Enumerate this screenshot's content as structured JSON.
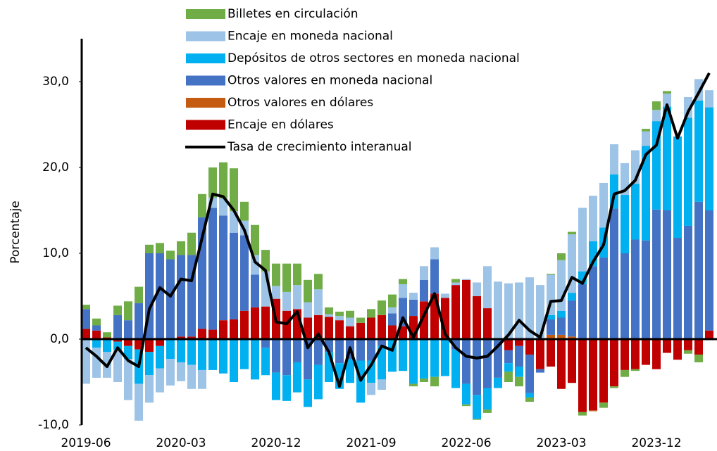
{
  "chart_data": {
    "type": "bar",
    "stacked": true,
    "y_label": "Porcentaje",
    "categories": [
      "2019-06",
      null,
      null,
      null,
      null,
      null,
      null,
      null,
      null,
      "2020-03",
      null,
      null,
      null,
      null,
      null,
      null,
      null,
      null,
      "2020-12",
      null,
      null,
      null,
      null,
      null,
      null,
      null,
      null,
      "2021-09",
      null,
      null,
      null,
      null,
      null,
      null,
      null,
      null,
      "2022-06",
      null,
      null,
      null,
      null,
      null,
      null,
      null,
      null,
      "2023-03",
      null,
      null,
      null,
      null,
      null,
      null,
      null,
      null,
      "2023-12",
      null,
      null,
      null,
      null,
      null
    ],
    "ylim": [
      -10,
      35
    ],
    "yticks": [
      {
        "value": -10,
        "label": "-10,0"
      },
      {
        "value": 0,
        "label": "0,0"
      },
      {
        "value": 10,
        "label": "10,0"
      },
      {
        "value": 20,
        "label": "20,0"
      },
      {
        "value": 30,
        "label": "30,0"
      }
    ],
    "series": [
      {
        "name": "Billetes en circulación",
        "color": "#70ad47",
        "values": [
          0.5,
          0.8,
          0.6,
          1.1,
          2.2,
          1.9,
          1,
          1.2,
          1,
          1.6,
          2.6,
          2.7,
          3.5,
          4.2,
          5,
          2.2,
          3.5,
          2.5,
          2.6,
          3.3,
          2.5,
          2.6,
          1.8,
          0.8,
          0.5,
          0.8,
          0.6,
          1,
          1.7,
          1.5,
          0.6,
          -0.3,
          -0.4,
          -1.1,
          0,
          0.4,
          -0.2,
          -0.1,
          -0.4,
          0,
          -1.2,
          -1.1,
          -0.5,
          0,
          0.1,
          0.8,
          0.3,
          -0.4,
          0,
          -0.6,
          -0.2,
          -0.8,
          -0.2,
          0.3,
          1,
          0.3,
          0,
          -0.4,
          -0.9,
          0
        ]
      },
      {
        "name": "Encaje en moneda nacional",
        "color": "#9dc3e6",
        "values": [
          -5.2,
          -3.5,
          -3,
          -3.7,
          -4.8,
          -4.3,
          -3.2,
          -2.8,
          -3.1,
          -2.2,
          -2.8,
          -2.2,
          1.2,
          2,
          2.5,
          1.7,
          2.3,
          4.1,
          1.5,
          2.2,
          2.8,
          1.8,
          3,
          0.3,
          0.5,
          1,
          0,
          -1.4,
          -1.2,
          0.7,
          1.6,
          0.8,
          1.6,
          1.4,
          0.5,
          0.3,
          0.1,
          1.6,
          4.9,
          6.7,
          6.5,
          6.6,
          7.2,
          6.3,
          4.7,
          5.9,
          6.8,
          7.4,
          5.3,
          5.2,
          3.5,
          3.7,
          3.9,
          1.7,
          1.3,
          1.5,
          0,
          2.4,
          2.5,
          2
        ]
      },
      {
        "name": "Depósitos de otros sectores en moneda nacional",
        "color": "#00b0f0",
        "values": [
          0,
          -1,
          -1.5,
          -1,
          -1.5,
          -4,
          -2.7,
          -2.6,
          -2.3,
          -2.7,
          -3,
          -3.6,
          -3.6,
          -4,
          -5,
          -3.5,
          -4.7,
          -3.2,
          -3.2,
          -3,
          -3.5,
          -3.2,
          -4,
          -3.5,
          -3,
          -2.8,
          -4.9,
          -2.6,
          -3.9,
          -3.8,
          -3.7,
          -5.2,
          -4.6,
          -4.4,
          -4.3,
          -4.5,
          -2.4,
          -2.8,
          -2.5,
          -1.2,
          -1,
          -1.2,
          -0.5,
          0,
          0.5,
          0.8,
          0.9,
          1.5,
          2.9,
          3.5,
          4,
          6.8,
          6.5,
          11,
          10.3,
          12.1,
          11.8,
          12.6,
          11.8,
          12
        ]
      },
      {
        "name": "Otros valores en moneda nacional",
        "color": "#4472c4",
        "values": [
          2.3,
          0.6,
          0,
          2.8,
          2.2,
          4.2,
          10,
          10,
          9.3,
          9.5,
          9.5,
          13,
          14.2,
          12.2,
          10.1,
          8.8,
          3.8,
          -1,
          -3.9,
          -4.2,
          -2.7,
          -4.7,
          -3,
          -1.5,
          -2.8,
          -2.3,
          -2.5,
          -2.5,
          -0.8,
          1.4,
          3.3,
          1.9,
          2.5,
          4,
          0,
          -1.2,
          -5.2,
          -6.5,
          -5.7,
          -4.5,
          -1.5,
          -2.4,
          -4.5,
          -0.4,
          1.8,
          2,
          4.2,
          6.4,
          8.5,
          9.5,
          15.2,
          10,
          11.6,
          11.5,
          15.1,
          15,
          11.8,
          13.2,
          16,
          14
        ]
      },
      {
        "name": "Otros valores en dólares",
        "color": "#c55a11",
        "values": [
          0,
          0,
          0,
          0,
          0,
          0,
          0,
          0,
          0,
          0,
          0,
          0,
          0,
          0,
          0,
          0,
          0,
          0,
          0,
          0,
          0,
          0,
          0,
          0,
          0,
          0,
          0,
          0,
          0,
          0,
          0,
          0,
          0,
          0,
          0,
          0,
          0,
          0,
          0,
          0,
          0,
          0,
          0,
          0,
          0.5,
          0.5,
          0.3,
          0,
          -0.1,
          0,
          0,
          0,
          0,
          0,
          0,
          0,
          0,
          0,
          0,
          0
        ]
      },
      {
        "name": "Encaje en dólares",
        "color": "#c00000",
        "values": [
          1.2,
          1,
          0.2,
          -0.3,
          -0.8,
          -1.2,
          -1.5,
          -0.8,
          0,
          0.3,
          0.3,
          1.2,
          1.1,
          2.2,
          2.3,
          3.3,
          3.7,
          3.8,
          4.7,
          3.3,
          3.5,
          2.5,
          2.8,
          2.6,
          2.2,
          1.5,
          1.9,
          2.5,
          2.8,
          1.6,
          1.5,
          2.7,
          4.4,
          5.3,
          4.8,
          6.3,
          6.9,
          5,
          3.6,
          0,
          -1.3,
          -0.8,
          -1.8,
          -3.5,
          -3.2,
          -5.8,
          -5.1,
          -8.5,
          -8.3,
          -7.4,
          -5.5,
          -3.6,
          -3.5,
          -3,
          -3.5,
          -1.6,
          -2.4,
          -1.3,
          -1.8,
          1
        ]
      },
      {
        "name": "Tasa de crecimiento interanual",
        "type": "line",
        "color": "#000000",
        "values": [
          -1,
          -2,
          -3.2,
          -1,
          -2.5,
          -3.2,
          3.5,
          6,
          5,
          7,
          6.8,
          11.8,
          16.9,
          16.6,
          15,
          12.7,
          9,
          8,
          2,
          1.8,
          3.2,
          -1,
          0.6,
          -1.5,
          -5.5,
          -1,
          -4.8,
          -3,
          -0.8,
          -1.3,
          2.5,
          0.2,
          2.8,
          5.3,
          0.6,
          -1,
          -2,
          -2.2,
          -2,
          -0.8,
          0.5,
          2.2,
          1,
          0.2,
          4.4,
          4.5,
          7.2,
          6.5,
          9,
          11,
          16.9,
          17.3,
          18.5,
          21.5,
          22.6,
          27.3,
          23.4,
          26.5,
          28.7,
          31
        ]
      }
    ]
  }
}
